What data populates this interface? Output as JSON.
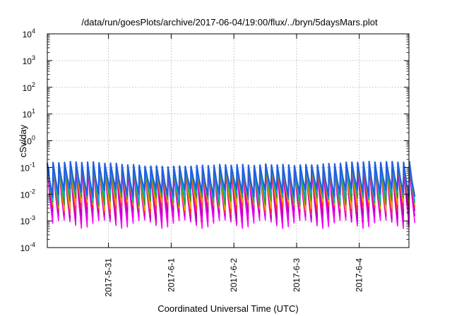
{
  "chart_data": {
    "type": "line",
    "title": "/data/run/goesPlots/archive/2017-06-04/19:00/flux/../bryn/5daysMars.plot",
    "xlabel": "Coordinated Universal Time (UTC)",
    "ylabel": "cSv/day",
    "y_scale": "log",
    "ylim": [
      0.0001,
      10000
    ],
    "xlim": [
      "2017-05-30 00:35",
      "2017-06-04 19:00"
    ],
    "x_ticks": [
      "2017-5-31",
      "2017-6-1",
      "2017-6-2",
      "2017-6-3",
      "2017-6-4"
    ],
    "y_ticks": [
      {
        "base": "10",
        "exp": "-4"
      },
      {
        "base": "10",
        "exp": "-3"
      },
      {
        "base": "10",
        "exp": "-2"
      },
      {
        "base": "10",
        "exp": "-1"
      },
      {
        "base": "10",
        "exp": "0"
      },
      {
        "base": "10",
        "exp": "1"
      },
      {
        "base": "10",
        "exp": "2"
      },
      {
        "base": "10",
        "exp": "3"
      },
      {
        "base": "10",
        "exp": "4"
      }
    ],
    "grid": true,
    "sawtooth": {
      "period_hours": 2.2,
      "cycles": 64,
      "peak_max": 0.16,
      "peak_min": 0.09,
      "trough_upper_band": 0.012,
      "trough_lower_band": 0.0008
    },
    "series_colors": [
      "#ff00ff",
      "#dd00dd",
      "#b000c0",
      "#ff3040",
      "#ff9900",
      "#2ca02c",
      "#00b0c8",
      "#2060e0"
    ]
  }
}
